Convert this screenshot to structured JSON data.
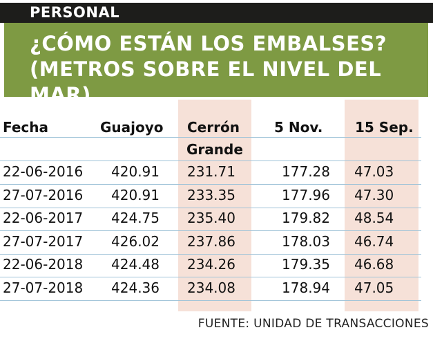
{
  "section_tag": "PERSONAL",
  "title": "¿CÓMO ESTÁN LOS EMBALSES?\n(METROS SOBRE EL NIVEL DEL MAR)",
  "table": {
    "headers": [
      "Fecha",
      "Guajoyo",
      "Cerrón",
      "5 Nov.",
      "15 Sep."
    ],
    "header_second_line": "Grande",
    "highlight_color": "#f6e1d8",
    "rows": [
      [
        "22-06-2016",
        "420.91",
        "231.71",
        "177.28",
        "47.03"
      ],
      [
        "27-07-2016",
        "420.91",
        "233.35",
        "177.96",
        "47.30"
      ],
      [
        "22-06-2017",
        "424.75",
        "235.40",
        "179.82",
        "48.54"
      ],
      [
        "27-07-2017",
        "426.02",
        "237.86",
        "178.03",
        "46.74"
      ],
      [
        "22-06-2018",
        "424.48",
        "234.26",
        "179.35",
        "46.68"
      ],
      [
        "27-07-2018",
        "424.36",
        "234.08",
        "178.94",
        "47.05"
      ]
    ]
  },
  "source": "FUENTE: UNIDAD DE TRANSACCIONES",
  "colors": {
    "banner": "#7e9a43",
    "tag": "#1d1d1b",
    "rule": "#9fc3d8"
  }
}
